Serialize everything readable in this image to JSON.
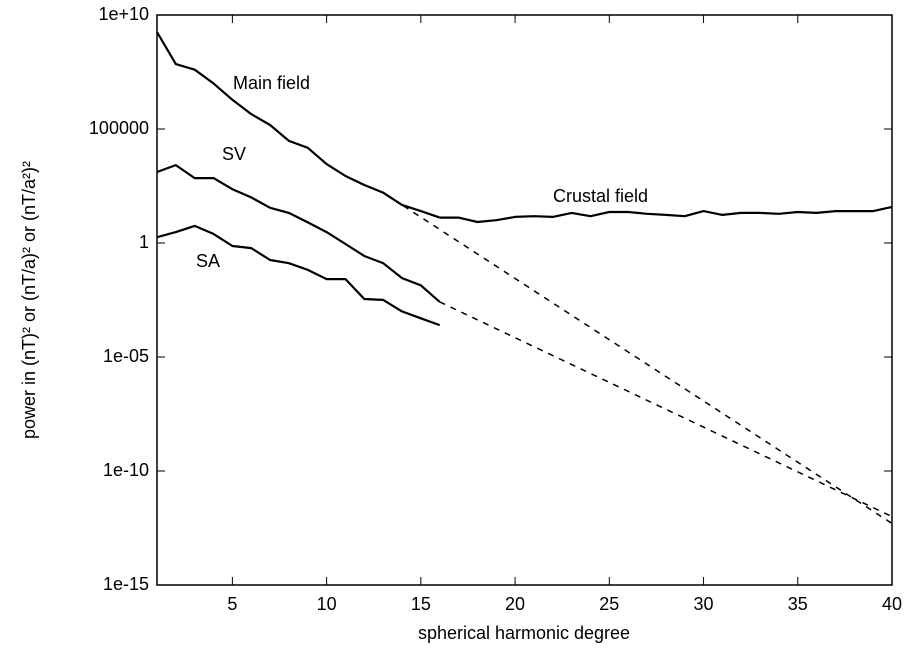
{
  "chart_data": {
    "type": "line",
    "xlabel": "spherical harmonic degree",
    "ylabel": "power in (nT)² or (nT/a)² or (nT/a²)²",
    "log_y": true,
    "xlim": [
      1,
      40
    ],
    "xticks": [
      5,
      10,
      15,
      20,
      25,
      30,
      35,
      40
    ],
    "ylim": [
      1e-15,
      10000000000.0
    ],
    "yticks": [
      {
        "value": 1e-15,
        "label": "1e-15"
      },
      {
        "value": 1e-10,
        "label": "1e-10"
      },
      {
        "value": 1e-05,
        "label": "1e-05"
      },
      1,
      100000,
      {
        "value": 10000000000.0,
        "label": "1e+10"
      }
    ],
    "series": [
      {
        "name": "Main field",
        "color": "#000000",
        "dash": false,
        "x": [
          1,
          2,
          3,
          4,
          5,
          6,
          7,
          8,
          9,
          10,
          11,
          12,
          13,
          14,
          15,
          16
        ],
        "values": [
          1800000000.0,
          70000000.0,
          40000000.0,
          10000000.0,
          1900000.0,
          450000.0,
          150000.0,
          30000.0,
          15000.0,
          2900,
          870,
          350,
          160,
          47,
          25,
          13
        ]
      },
      {
        "name": "Crustal field",
        "color": "#000000",
        "dash": false,
        "x": [
          16,
          17,
          18,
          19,
          20,
          21,
          22,
          23,
          24,
          25,
          26,
          27,
          28,
          29,
          30,
          31,
          32,
          33,
          34,
          35,
          36,
          37,
          38,
          39,
          40
        ],
        "values": [
          13,
          13,
          8.3,
          10,
          14,
          15,
          14,
          21,
          15,
          23,
          23,
          19,
          17,
          15,
          25,
          17,
          21,
          21,
          19,
          23,
          21,
          25,
          25,
          25,
          38
        ]
      },
      {
        "name": "SV",
        "color": "#000000",
        "dash": false,
        "x": [
          1,
          2,
          3,
          4,
          5,
          6,
          7,
          8,
          9,
          10,
          11,
          12,
          13,
          14,
          15,
          16
        ],
        "values": [
          1300,
          2600,
          700,
          700,
          230,
          100,
          35,
          21,
          8,
          3,
          0.9,
          0.27,
          0.13,
          0.029,
          0.014,
          0.0026
        ]
      },
      {
        "name": "SA",
        "color": "#000000",
        "dash": false,
        "x": [
          1,
          2,
          3,
          4,
          5,
          6,
          7,
          8,
          9,
          10,
          11,
          12,
          13,
          14,
          15,
          16
        ],
        "values": [
          1.8,
          3,
          5.6,
          2.5,
          0.74,
          0.6,
          0.18,
          0.13,
          0.066,
          0.026,
          0.026,
          0.0035,
          0.0032,
          0.001,
          0.0005,
          0.00025
        ]
      },
      {
        "color": "#000000",
        "dash": true,
        "x": [
          13,
          40
        ],
        "values": [
          160,
          5e-13
        ]
      },
      {
        "color": "#000000",
        "dash": true,
        "x": [
          16,
          40
        ],
        "values": [
          0.0026,
          1e-12
        ]
      }
    ]
  }
}
